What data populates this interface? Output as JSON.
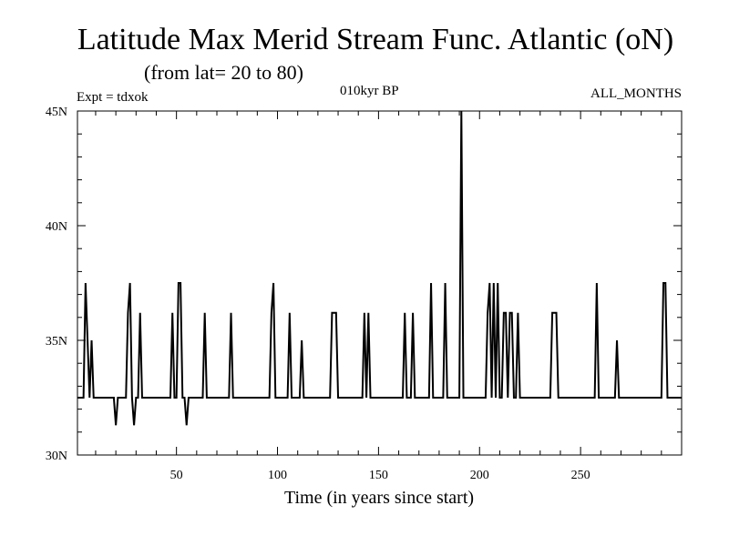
{
  "chart_data": {
    "type": "line",
    "title": "Latitude Max Merid Stream Func. Atlantic (oN)",
    "subtitle": "(from lat= 20 to 80)",
    "experiment": "Expt = tdxok",
    "period": "010kyr BP",
    "months": "ALL_MONTHS",
    "xlabel": "Time (in years since start)",
    "ylabel": "",
    "xlim": [
      1,
      300
    ],
    "ylim": [
      30,
      45
    ],
    "x_ticks": [
      50,
      100,
      150,
      200,
      250
    ],
    "x_tick_labels": [
      "50",
      "100",
      "150",
      "200",
      "250"
    ],
    "y_ticks": [
      30,
      35,
      40,
      45
    ],
    "y_tick_labels": [
      "30N",
      "35N",
      "40N",
      "45N"
    ],
    "grid": false,
    "series": [
      {
        "color": "#000000",
        "x": [
          1,
          4,
          5,
          6,
          7,
          8,
          9,
          10,
          19,
          20,
          21,
          22,
          25,
          26,
          27,
          28,
          29,
          30,
          31,
          32,
          33,
          34,
          47,
          48,
          49,
          50,
          51,
          52,
          53,
          54,
          55,
          56,
          57,
          58,
          63,
          64,
          65,
          76,
          77,
          78,
          96,
          97,
          98,
          99,
          105,
          106,
          107,
          111,
          112,
          113,
          126,
          127,
          128,
          129,
          130,
          142,
          143,
          144,
          145,
          146,
          162,
          163,
          164,
          166,
          167,
          168,
          175,
          176,
          177,
          182,
          183,
          184,
          190,
          191,
          192,
          193,
          203,
          204,
          205,
          206,
          207,
          208,
          209,
          210,
          211,
          212,
          213,
          214,
          215,
          216,
          217,
          218,
          219,
          220,
          221,
          235,
          236,
          237,
          238,
          239,
          257,
          258,
          259,
          267,
          268,
          269,
          290,
          291,
          292,
          293,
          300
        ],
        "y": [
          32.5,
          32.5,
          37.5,
          35,
          32.5,
          35,
          32.5,
          32.5,
          32.5,
          31.3,
          32.5,
          32.5,
          32.5,
          36.2,
          37.5,
          32.5,
          31.3,
          32.5,
          32.5,
          36.2,
          32.5,
          32.5,
          32.5,
          36.2,
          32.5,
          32.5,
          37.5,
          37.5,
          32.5,
          32.5,
          31.3,
          32.5,
          32.5,
          32.5,
          32.5,
          36.2,
          32.5,
          32.5,
          36.2,
          32.5,
          32.5,
          36.2,
          37.5,
          32.5,
          32.5,
          36.2,
          32.5,
          32.5,
          35,
          32.5,
          32.5,
          36.2,
          36.2,
          36.2,
          32.5,
          32.5,
          36.2,
          32.5,
          36.2,
          32.5,
          32.5,
          36.2,
          32.5,
          32.5,
          36.2,
          32.5,
          32.5,
          37.5,
          32.5,
          32.5,
          37.5,
          32.5,
          32.5,
          45,
          32.5,
          32.5,
          32.5,
          36.2,
          37.5,
          32.5,
          37.5,
          32.5,
          37.5,
          32.5,
          32.5,
          36.2,
          36.2,
          32.5,
          36.2,
          36.2,
          32.5,
          32.5,
          36.2,
          32.5,
          32.5,
          32.5,
          36.2,
          36.2,
          36.2,
          32.5,
          32.5,
          37.5,
          32.5,
          32.5,
          35,
          32.5,
          32.5,
          37.5,
          37.5,
          32.5,
          32.5
        ]
      }
    ]
  }
}
